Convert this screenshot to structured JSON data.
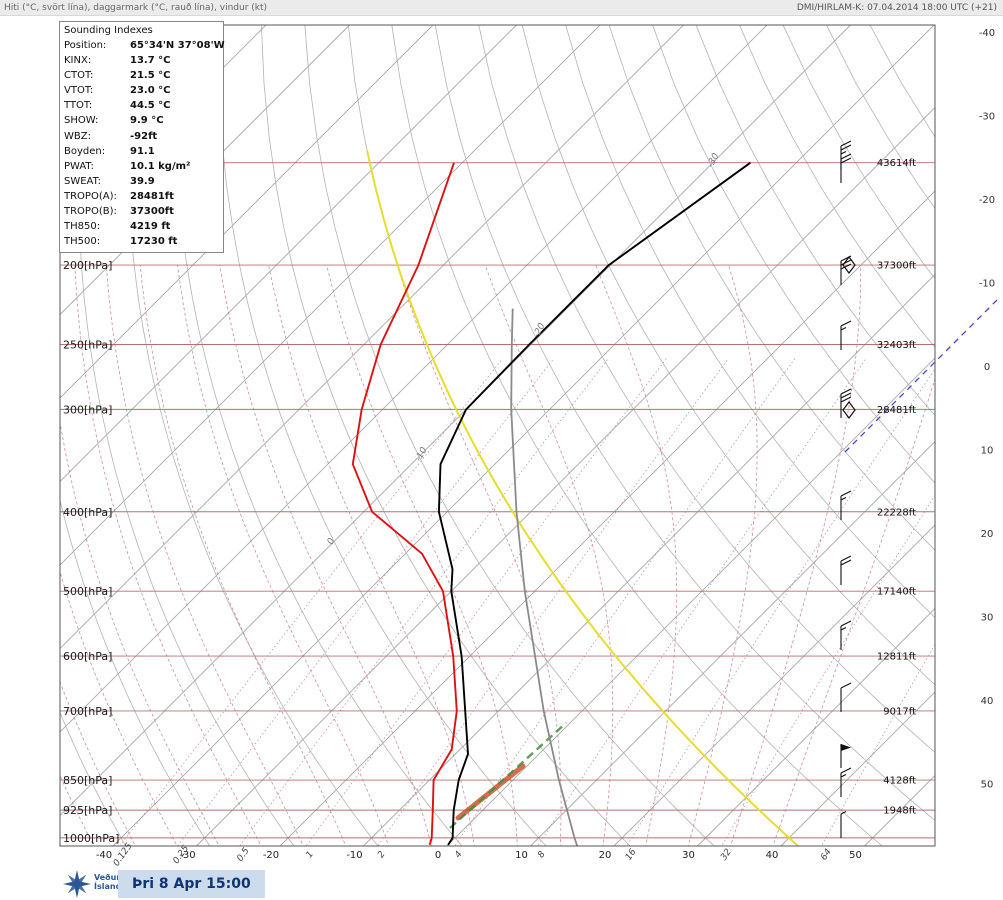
{
  "header": {
    "left": "Hiti (°C, svört lína), daggarmark (°C, rauð lína), vindur (kt)",
    "right": "DMI/HIRLAM-K: 07.04.2014 18:00 UTC (+21)"
  },
  "indexes": {
    "title": "Sounding Indexes",
    "rows": [
      {
        "label": "Position:",
        "value": "65°34'N 37°08'W"
      },
      {
        "label": "KINX:",
        "value": "13.7 °C"
      },
      {
        "label": "CTOT:",
        "value": "21.5 °C"
      },
      {
        "label": "VTOT:",
        "value": "23.0 °C"
      },
      {
        "label": "TTOT:",
        "value": "44.5 °C"
      },
      {
        "label": "SHOW:",
        "value": "9.9 °C"
      },
      {
        "label": "WBZ:",
        "value": "-92ft"
      },
      {
        "label": "Boyden:",
        "value": "91.1"
      },
      {
        "label": "PWAT:",
        "value": "10.1 kg/m²"
      },
      {
        "label": "SWEAT:",
        "value": "39.9"
      },
      {
        "label": "TROPO(A):",
        "value": "28481ft"
      },
      {
        "label": "TROPO(B):",
        "value": "37300ft"
      },
      {
        "label": "TH850:",
        "value": "4219 ft"
      },
      {
        "label": "TH500:",
        "value": "17230 ft"
      }
    ]
  },
  "footer": {
    "org_line1": "Veðurstofa",
    "org_line2": "Íslands",
    "timestamp": "Þri 8 Apr 15:00"
  },
  "chart_data": {
    "type": "line",
    "chart_kind": "skew-T log-p atmospheric sounding",
    "pressure_levels_hpa": [
      150,
      200,
      250,
      300,
      400,
      500,
      600,
      700,
      850,
      925,
      1000
    ],
    "pressure_axis_labels": [
      "200[hPa]",
      "250[hPa]",
      "300[hPa]",
      "400[hPa]",
      "500[hPa]",
      "600[hPa]",
      "700[hPa]",
      "850[hPa]",
      "925[hPa]",
      "1000[hPa]"
    ],
    "geopotential_height_labels": [
      {
        "p": 150,
        "label": "43614ft"
      },
      {
        "p": 200,
        "label": "37300ft"
      },
      {
        "p": 250,
        "label": "32403ft"
      },
      {
        "p": 300,
        "label": "28481ft"
      },
      {
        "p": 400,
        "label": "22228ft"
      },
      {
        "p": 500,
        "label": "17140ft"
      },
      {
        "p": 600,
        "label": "12811ft"
      },
      {
        "p": 700,
        "label": "9017ft"
      },
      {
        "p": 850,
        "label": "4128ft"
      },
      {
        "p": 925,
        "label": "1948ft"
      }
    ],
    "temperature_axis_c": [
      -40,
      -30,
      -20,
      -10,
      0,
      10,
      20,
      30,
      40,
      50
    ],
    "right_edge_temp_labels_c": [
      -40,
      -30,
      -20,
      -10,
      0,
      10,
      20,
      30,
      40,
      50
    ],
    "mixing_ratio_g_per_kg": [
      0.125,
      0.25,
      0.5,
      1,
      2,
      4,
      8,
      16,
      32,
      64
    ],
    "isoline_labels": [
      {
        "text": "0",
        "x": 332,
        "y": 545
      },
      {
        "text": "-10",
        "x": 420,
        "y": 462
      },
      {
        "text": "-20",
        "x": 538,
        "y": 338
      },
      {
        "text": "-30",
        "x": 712,
        "y": 168
      }
    ],
    "series": [
      {
        "name": "temperature",
        "color": "#000000",
        "points_p_t": [
          [
            1020,
            0.0
          ],
          [
            1000,
            -0.3
          ],
          [
            925,
            -3.5
          ],
          [
            850,
            -6.5
          ],
          [
            790,
            -8.5
          ],
          [
            700,
            -14.0
          ],
          [
            600,
            -21.0
          ],
          [
            500,
            -30.0
          ],
          [
            470,
            -32.5
          ],
          [
            400,
            -41.0
          ],
          [
            350,
            -46.5
          ],
          [
            300,
            -50.0
          ],
          [
            250,
            -50.2
          ],
          [
            200,
            -50.2
          ],
          [
            150,
            -45.5
          ]
        ]
      },
      {
        "name": "dewpoint",
        "color": "#dd1111",
        "points_p_t": [
          [
            1020,
            -2.2
          ],
          [
            1000,
            -2.8
          ],
          [
            925,
            -6.0
          ],
          [
            850,
            -9.5
          ],
          [
            780,
            -11.0
          ],
          [
            700,
            -15.0
          ],
          [
            600,
            -22.0
          ],
          [
            500,
            -31.0
          ],
          [
            450,
            -38.0
          ],
          [
            400,
            -49.0
          ],
          [
            350,
            -57.0
          ],
          [
            300,
            -62.5
          ],
          [
            250,
            -68.0
          ],
          [
            200,
            -73.0
          ],
          [
            150,
            -81.0
          ]
        ]
      },
      {
        "name": "standard-atmosphere",
        "color": "#8a8a8a",
        "points_p_t": [
          [
            1045,
            16.8
          ],
          [
            1000,
            14.3
          ],
          [
            850,
            5.5
          ],
          [
            700,
            -4.6
          ],
          [
            500,
            -21.2
          ],
          [
            400,
            -31.7
          ],
          [
            300,
            -44.6
          ],
          [
            250,
            -52.3
          ],
          [
            226,
            -56.5
          ]
        ]
      },
      {
        "name": "parcel-dry-adiabat",
        "color": "#e6dd32",
        "theta_c": 40
      }
    ],
    "wind_barbs": [
      {
        "y": 170,
        "kt": 25
      },
      {
        "y": 183,
        "kt": 20
      },
      {
        "y": 285,
        "kt": 30
      },
      {
        "y": 350,
        "kt": 15
      },
      {
        "y": 418,
        "kt": 30
      },
      {
        "y": 520,
        "kt": 15
      },
      {
        "y": 585,
        "kt": 20
      },
      {
        "y": 650,
        "kt": 15
      },
      {
        "y": 712,
        "kt": 10
      },
      {
        "y": 768,
        "kt": 50
      },
      {
        "y": 797,
        "kt": 15
      },
      {
        "y": 838,
        "kt": 5
      }
    ],
    "tropopause_marker_y": [
      265,
      410
    ],
    "highlights": {
      "red_segment": {
        "x1": 458,
        "y1": 818,
        "x2": 523,
        "y2": 766,
        "color": "#cc4a22"
      },
      "green_dashed": {
        "x1": 450,
        "y1": 828,
        "x2": 566,
        "y2": 723,
        "color": "#3f8f3f"
      },
      "blue_dashed": {
        "x1": 845,
        "y1": 452,
        "x2": 1000,
        "y2": 297,
        "color": "#4747cc"
      }
    }
  }
}
